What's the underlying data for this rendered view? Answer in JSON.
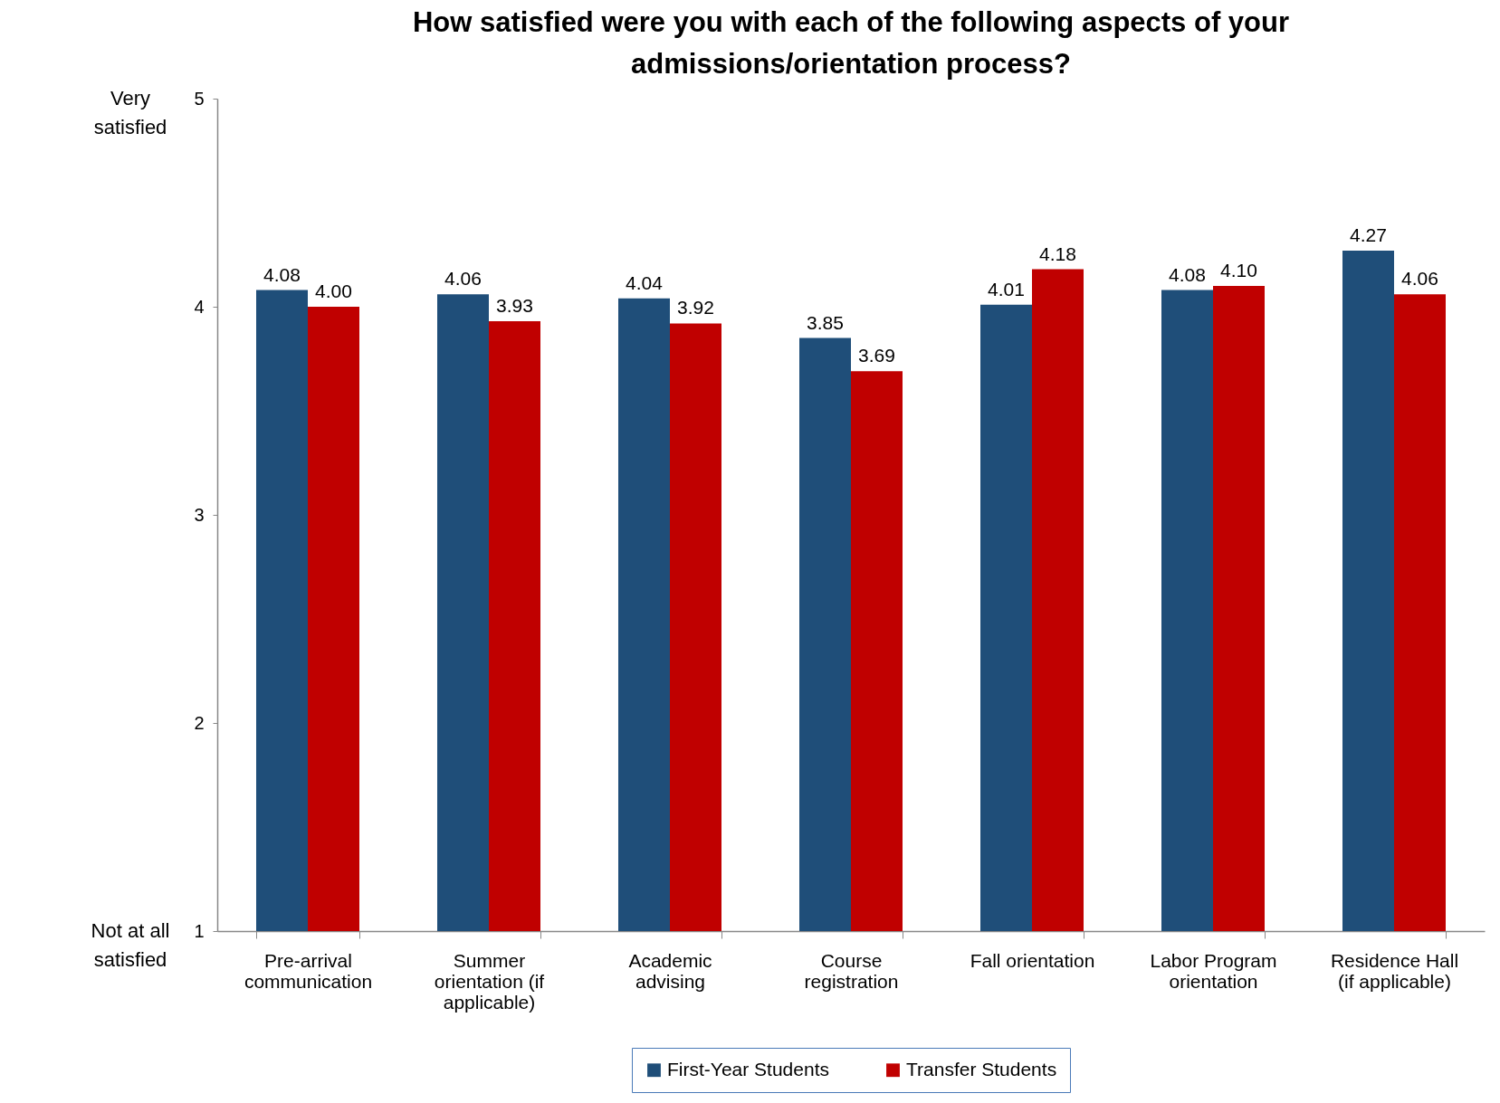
{
  "chart_data": {
    "type": "bar",
    "title": "How satisfied were you with each of the following aspects of your admissions/orientation process?",
    "categories": [
      "Pre-arrival communication",
      "Summer orientation (if applicable)",
      "Academic advising",
      "Course registration",
      "Fall orientation",
      "Labor Program orientation",
      "Residence Hall (if applicable)"
    ],
    "series": [
      {
        "name": "First-Year Students",
        "color": "#1f4e79",
        "values": [
          4.08,
          4.06,
          4.04,
          3.85,
          4.01,
          4.08,
          4.27
        ],
        "value_labels": [
          "4.08",
          "4.06",
          "4.04",
          "3.85",
          "4.01",
          "4.08",
          "4.27"
        ]
      },
      {
        "name": "Transfer Students",
        "color": "#c00000",
        "values": [
          4.0,
          3.93,
          3.92,
          3.69,
          4.18,
          4.1,
          4.06
        ],
        "value_labels": [
          "4.00",
          "3.93",
          "3.92",
          "3.69",
          "4.18",
          "4.10",
          "4.06"
        ]
      }
    ],
    "ylim": [
      1,
      5
    ],
    "yticks": [
      1,
      2,
      3,
      4,
      5
    ],
    "grid": false,
    "legend": "bottom",
    "annotations": [
      "Very satisfied",
      "Not at all satisfied"
    ]
  }
}
